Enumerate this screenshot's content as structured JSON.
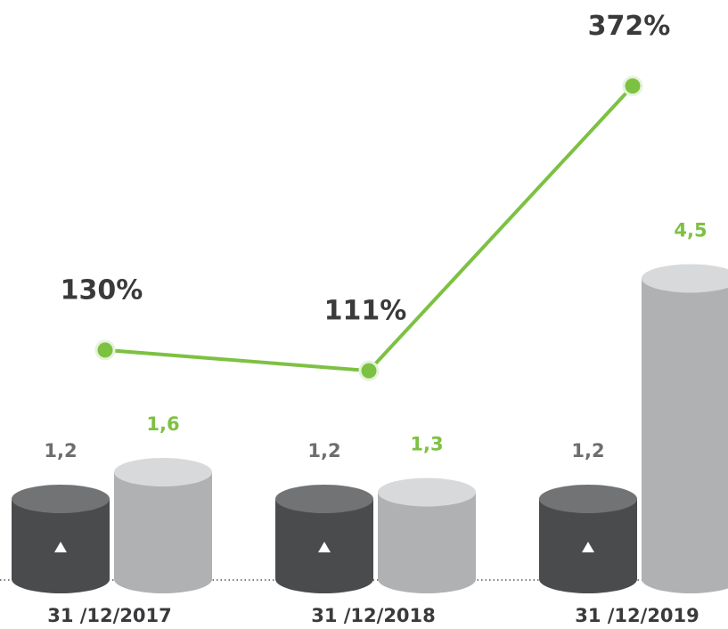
{
  "chart_data": {
    "type": "bar",
    "categories": [
      "31 /12/2017",
      "31 /12/2018",
      "31 /12/2019"
    ],
    "ylim": [
      0,
      8
    ],
    "y2lim": [
      -80,
      410
    ],
    "series": [
      {
        "type": "bar",
        "color": "#4a4b4d",
        "label_color": "#6d6e70",
        "values": [
          1.2,
          1.2,
          1.2
        ],
        "value_labels": [
          "1,2",
          "1,2",
          "1,2"
        ]
      },
      {
        "type": "bar",
        "color": "#b0b1b3",
        "label_color": "#7dc142",
        "values": [
          1.6,
          1.3,
          4.5
        ],
        "value_labels": [
          "1,6",
          "1,3",
          "4,5"
        ]
      },
      {
        "type": "line",
        "axis": "y2",
        "color": "#7dc142",
        "label_color": "#3a3a3c",
        "values": [
          130,
          111,
          372
        ],
        "value_labels": [
          "130%",
          "111%",
          "372%"
        ]
      }
    ]
  }
}
